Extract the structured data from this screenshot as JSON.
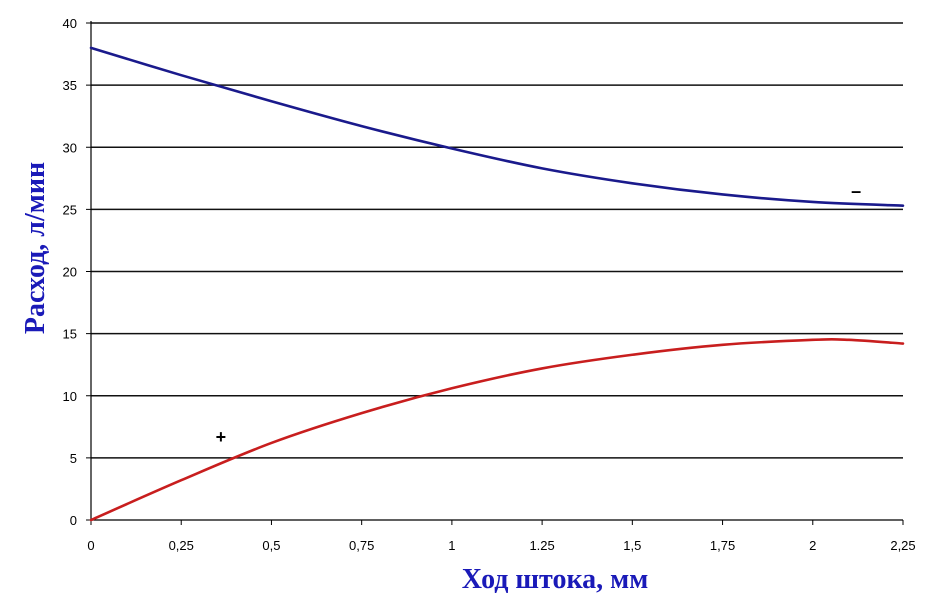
{
  "chart_data": {
    "type": "line",
    "title": "",
    "xlabel": "Ход штока, мм",
    "ylabel": "Расход, л/мин",
    "xlim": [
      0,
      2.25
    ],
    "ylim": [
      0,
      40
    ],
    "grid": true,
    "x_ticks": [
      "0",
      "0,25",
      "0,5",
      "0,75",
      "1",
      "1.25",
      "1,5",
      "1,75",
      "2",
      "2,25"
    ],
    "y_ticks": [
      "0",
      "5",
      "10",
      "15",
      "20",
      "25",
      "30",
      "35",
      "40"
    ],
    "series": [
      {
        "color": "#1a1a8c",
        "annotation": "–",
        "x": [
          0,
          0.25,
          0.5,
          0.75,
          1.0,
          1.25,
          1.5,
          1.75,
          2.0,
          2.25
        ],
        "y": [
          38.0,
          35.8,
          33.7,
          31.7,
          29.9,
          28.3,
          27.1,
          26.2,
          25.6,
          25.3
        ]
      },
      {
        "color": "#c81e1e",
        "annotation": "+",
        "x": [
          0,
          0.25,
          0.5,
          0.75,
          1.0,
          1.25,
          1.5,
          1.75,
          2.0,
          2.1,
          2.25
        ],
        "y": [
          0.0,
          3.2,
          6.2,
          8.6,
          10.6,
          12.2,
          13.3,
          14.1,
          14.5,
          14.5,
          14.2
        ]
      }
    ]
  }
}
